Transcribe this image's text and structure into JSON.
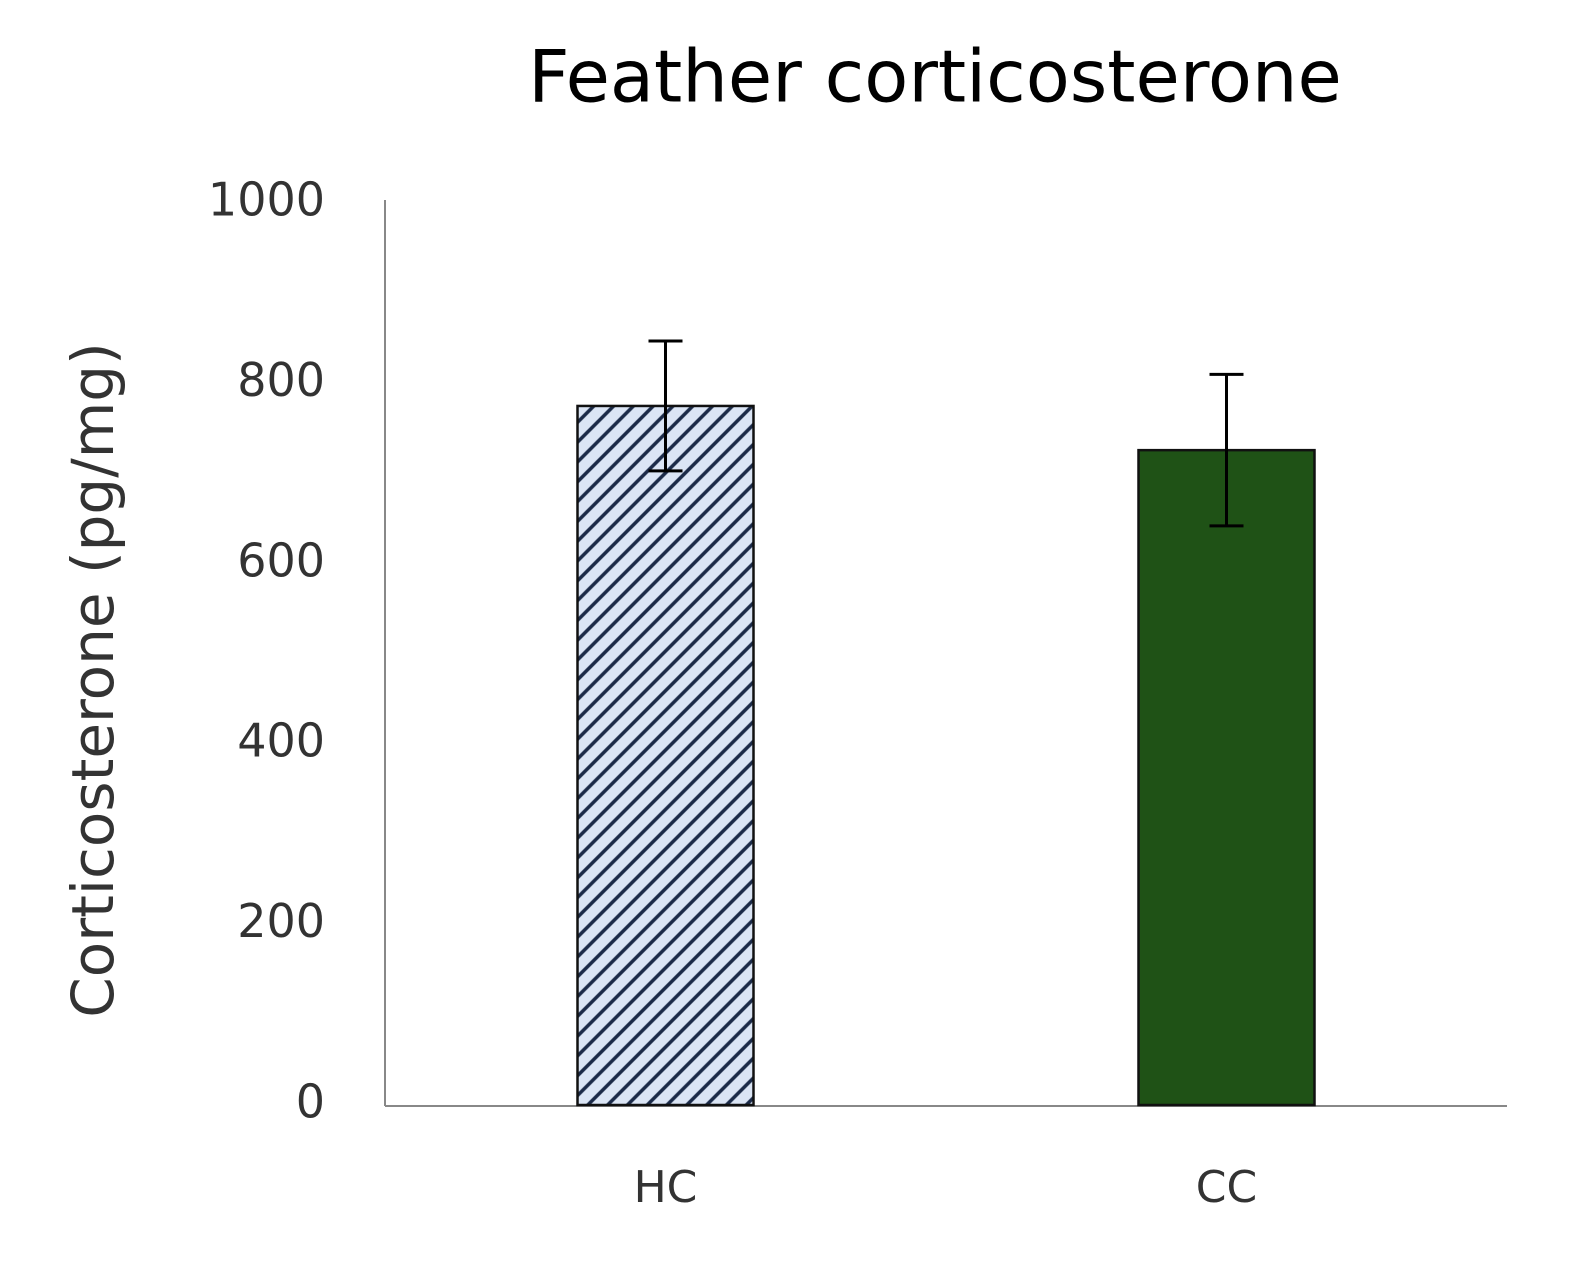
{
  "chart_data": {
    "type": "bar",
    "title": "Feather corticosterone",
    "y_label": "Corticosterone (pg/mg)",
    "categories": [
      "HC",
      "CC"
    ],
    "values": [
      775,
      726
    ],
    "errors": [
      72,
      84
    ],
    "colors": [
      "#dbe5f5",
      "#1f5216"
    ],
    "hatch": [
      true,
      false
    ],
    "ylim": [
      0,
      1000
    ],
    "yticks": [
      0,
      200,
      400,
      600,
      800,
      1000
    ],
    "grid": false
  }
}
